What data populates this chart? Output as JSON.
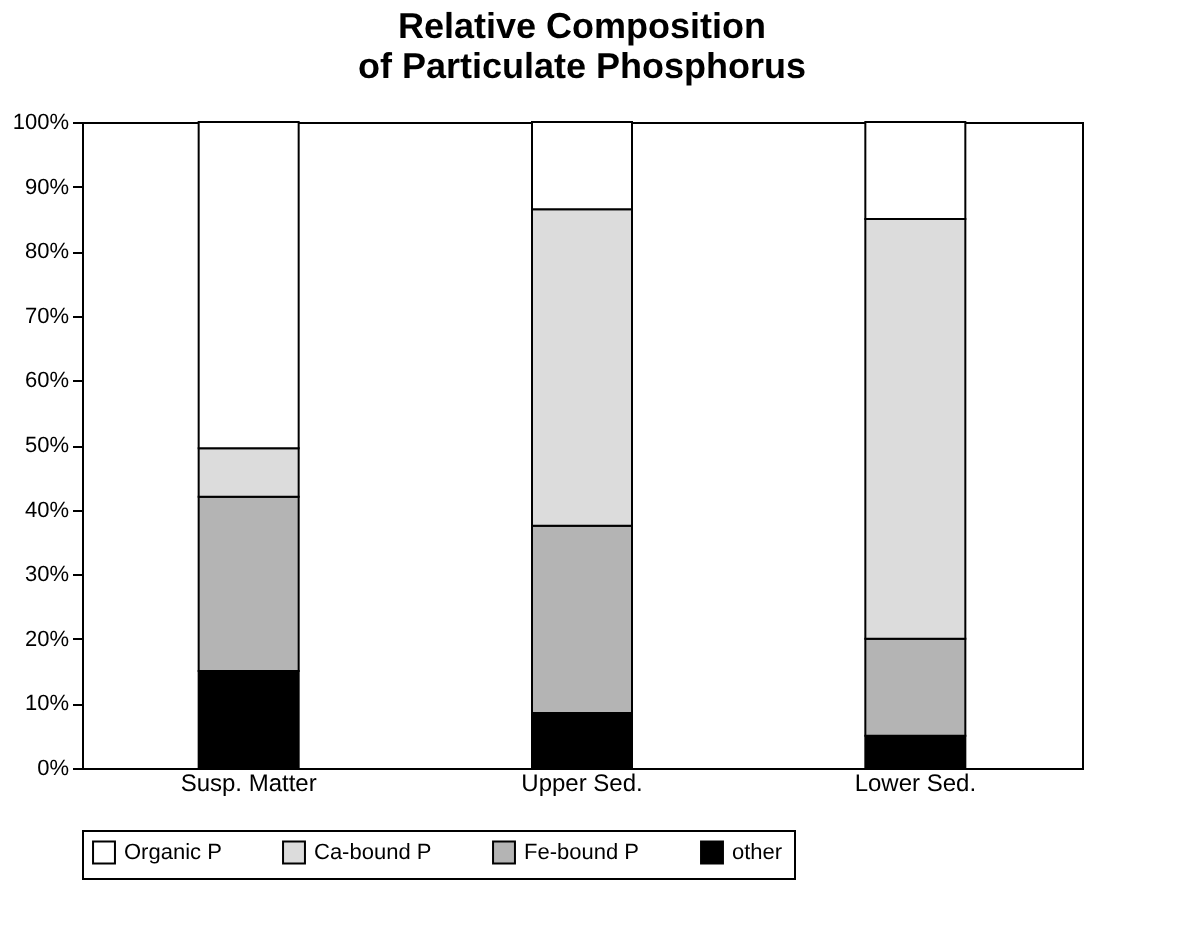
{
  "chart_data": {
    "type": "bar",
    "title": "Relative Composition\nof Particulate Phosphorus",
    "categories": [
      "Susp. Matter",
      "Upper Sed.",
      "Lower Sed."
    ],
    "stacked": true,
    "series": [
      {
        "name": "other",
        "color": "#000000",
        "values": [
          15,
          8.5,
          5
        ]
      },
      {
        "name": "Fe-bound P",
        "color": "#b4b4b4",
        "values": [
          27,
          29,
          15
        ]
      },
      {
        "name": "Ca-bound P",
        "color": "#dcdcdc",
        "values": [
          7.5,
          49,
          65
        ]
      },
      {
        "name": "Organic P",
        "color": "#ffffff",
        "values": [
          50.5,
          13.5,
          15
        ]
      }
    ],
    "ylim": [
      0,
      100
    ],
    "yticks": [
      {
        "value": 0,
        "label": "0%"
      },
      {
        "value": 10,
        "label": "10%"
      },
      {
        "value": 20,
        "label": "20%"
      },
      {
        "value": 30,
        "label": "30%"
      },
      {
        "value": 40,
        "label": "40%"
      },
      {
        "value": 50,
        "label": "50%"
      },
      {
        "value": 60,
        "label": "60%"
      },
      {
        "value": 70,
        "label": "70%"
      },
      {
        "value": 80,
        "label": "80%"
      },
      {
        "value": 90,
        "label": "90%"
      },
      {
        "value": 100,
        "label": "100%"
      }
    ],
    "legend": "bottom"
  }
}
